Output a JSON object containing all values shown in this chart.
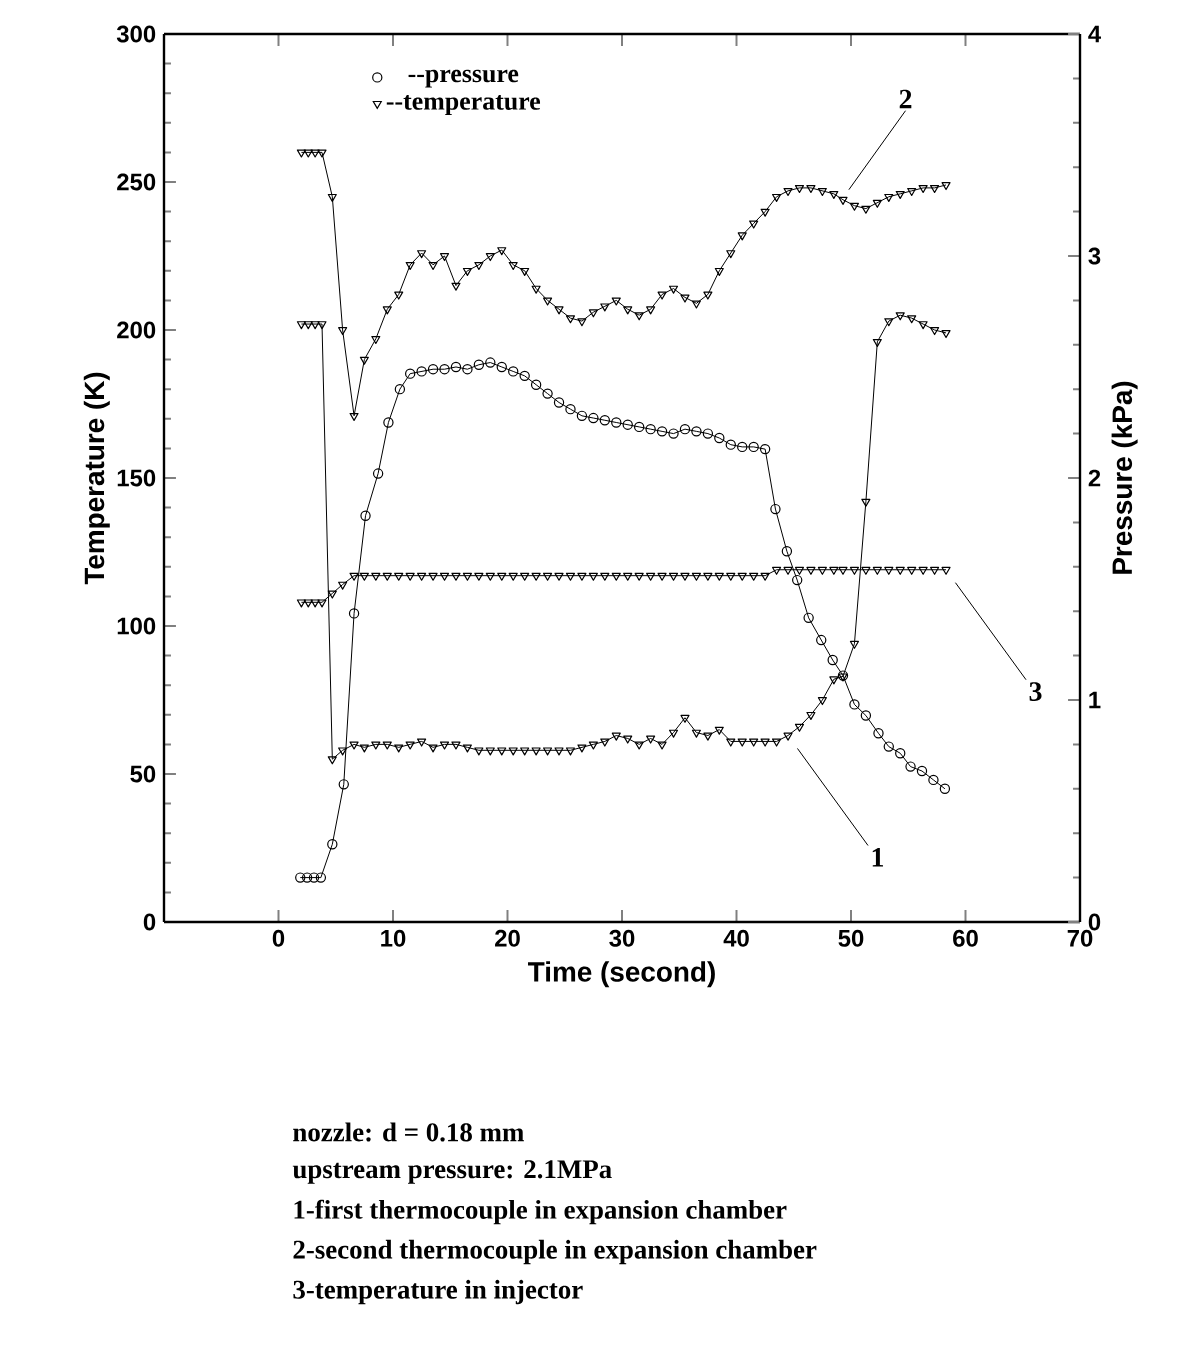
{
  "chart_data": {
    "type": "line",
    "xlabel": "Time (second)",
    "ylabel": "Temperature (K)",
    "y2label": "Pressure (kPa)",
    "xlim": [
      -10,
      70
    ],
    "xticks": [
      0,
      10,
      20,
      30,
      40,
      50,
      60,
      70
    ],
    "ylim": [
      0,
      300
    ],
    "yticks": [
      0,
      50,
      100,
      150,
      200,
      250,
      300
    ],
    "y2lim": [
      0,
      4
    ],
    "y2ticks": [
      0,
      1,
      2,
      3,
      4
    ],
    "legend": "top left",
    "line_style": "solid",
    "series": [
      {
        "name": "--pressure",
        "color": "#000000",
        "axis": "y2",
        "marker": "circle",
        "x": [
          1.9,
          2.5,
          3.1,
          3.7,
          4.7,
          5.7,
          6.6,
          7.6,
          8.7,
          9.6,
          10.6,
          11.5,
          12.5,
          13.5,
          14.5,
          15.5,
          16.5,
          17.5,
          18.5,
          19.5,
          20.5,
          21.5,
          22.5,
          23.5,
          24.5,
          25.5,
          26.5,
          27.5,
          28.5,
          29.5,
          30.5,
          31.5,
          32.5,
          33.5,
          34.5,
          35.5,
          36.5,
          37.5,
          38.5,
          39.5,
          40.5,
          41.5,
          42.5,
          43.4,
          44.4,
          45.3,
          46.3,
          47.4,
          48.4,
          49.3,
          50.3,
          51.3,
          52.4,
          53.3,
          54.3,
          55.2,
          56.2,
          57.2,
          58.2
        ],
        "values": [
          0.2,
          0.2,
          0.2,
          0.2,
          0.35,
          0.62,
          1.39,
          1.83,
          2.02,
          2.25,
          2.4,
          2.47,
          2.48,
          2.49,
          2.49,
          2.5,
          2.49,
          2.51,
          2.52,
          2.5,
          2.48,
          2.46,
          2.42,
          2.38,
          2.34,
          2.31,
          2.28,
          2.27,
          2.26,
          2.25,
          2.24,
          2.23,
          2.22,
          2.21,
          2.2,
          2.22,
          2.21,
          2.2,
          2.18,
          2.15,
          2.14,
          2.14,
          2.13,
          1.86,
          1.67,
          1.54,
          1.37,
          1.27,
          1.18,
          1.11,
          0.98,
          0.93,
          0.85,
          0.79,
          0.76,
          0.7,
          0.68,
          0.64,
          0.6
        ]
      },
      {
        "name": "--temperature",
        "color": "#000000",
        "marker": "triangle",
        "x": [
          2,
          2.6,
          3.2,
          3.8,
          4.7,
          5.6,
          6.6,
          7.5,
          8.5,
          9.5,
          10.5,
          11.5,
          12.5,
          13.5,
          14.5,
          15.5,
          16.5,
          17.5,
          18.5,
          19.5,
          20.5,
          21.5,
          22.5,
          23.5,
          24.5,
          25.5,
          26.5,
          27.5,
          28.5,
          29.5,
          30.5,
          31.5,
          32.5,
          33.5,
          34.5,
          35.5,
          36.5,
          37.5,
          38.5,
          39.5,
          40.5,
          41.5,
          42.5,
          43.5,
          44.5,
          45.5,
          46.5,
          47.5,
          48.5,
          49.3,
          50.3,
          51.3,
          52.3,
          53.3,
          54.3,
          55.3,
          56.3,
          57.3,
          58.3
        ],
        "values": [
          202,
          202,
          202,
          202,
          55,
          58,
          60,
          59,
          60,
          60,
          59,
          60,
          61,
          59,
          60,
          60,
          59,
          58,
          58,
          58,
          58,
          58,
          58,
          58,
          58,
          58,
          59,
          60,
          61,
          63,
          62,
          60,
          62,
          60,
          64,
          69,
          64,
          63,
          65,
          61,
          61,
          61,
          61,
          61,
          63,
          66,
          70,
          75,
          82,
          83,
          94,
          142,
          196,
          203,
          205,
          204,
          202,
          200,
          199
        ]
      },
      {
        "color": "#000000",
        "marker": "triangle",
        "x": [
          2,
          2.6,
          3.2,
          3.8,
          4.7,
          5.6,
          6.6,
          7.5,
          8.5,
          9.5,
          10.5,
          11.5,
          12.5,
          13.5,
          14.5,
          15.5,
          16.5,
          17.5,
          18.5,
          19.5,
          20.5,
          21.5,
          22.5,
          23.5,
          24.5,
          25.5,
          26.5,
          27.5,
          28.5,
          29.5,
          30.5,
          31.5,
          32.5,
          33.5,
          34.5,
          35.5,
          36.5,
          37.5,
          38.5,
          39.5,
          40.5,
          41.5,
          42.5,
          43.5,
          44.5,
          45.5,
          46.5,
          47.5,
          48.5,
          49.3,
          50.3,
          51.3,
          52.3,
          53.3,
          54.3,
          55.3,
          56.3,
          57.3,
          58.3
        ],
        "values": [
          260,
          260,
          260,
          260,
          245,
          200,
          171,
          190,
          197,
          207,
          212,
          222,
          226,
          222,
          225,
          215,
          220,
          222,
          225,
          227,
          222,
          220,
          214,
          210,
          207,
          204,
          203,
          206,
          208,
          210,
          207,
          205,
          207,
          212,
          214,
          211,
          209,
          212,
          220,
          226,
          232,
          236,
          240,
          245,
          247,
          248,
          248,
          247,
          246,
          244,
          242,
          241,
          243,
          245,
          246,
          247,
          248,
          248,
          249
        ]
      },
      {
        "color": "#000000",
        "marker": "triangle",
        "x": [
          2,
          2.6,
          3.2,
          3.8,
          4.7,
          5.6,
          6.6,
          7.5,
          8.5,
          9.5,
          10.5,
          11.5,
          12.5,
          13.5,
          14.5,
          15.5,
          16.5,
          17.5,
          18.5,
          19.5,
          20.5,
          21.5,
          22.5,
          23.5,
          24.5,
          25.5,
          26.5,
          27.5,
          28.5,
          29.5,
          30.5,
          31.5,
          32.5,
          33.5,
          34.5,
          35.5,
          36.5,
          37.5,
          38.5,
          39.5,
          40.5,
          41.5,
          42.5,
          43.5,
          44.5,
          45.5,
          46.5,
          47.5,
          48.5,
          49.3,
          50.3,
          51.3,
          52.3,
          53.3,
          54.3,
          55.3,
          56.3,
          57.3,
          58.3
        ],
        "values": [
          108,
          108,
          108,
          108,
          111,
          114,
          117,
          117,
          117,
          117,
          117,
          117,
          117,
          117,
          117,
          117,
          117,
          117,
          117,
          117,
          117,
          117,
          117,
          117,
          117,
          117,
          117,
          117,
          117,
          117,
          117,
          117,
          117,
          117,
          117,
          117,
          117,
          117,
          117,
          117,
          117,
          117,
          117,
          119,
          119,
          119,
          119,
          119,
          119,
          119,
          119,
          119,
          119,
          119,
          119,
          119,
          119,
          119,
          119
        ]
      }
    ],
    "annotations": [
      {
        "text": "2",
        "x": 49,
        "y": 243
      },
      {
        "text": "3",
        "x": 58.3,
        "y": 119
      },
      {
        "text": "1",
        "x": 44.5,
        "y": 63
      },
      "nozzle: d = 0.18 mm",
      "upstream pressure: 2.1MPa",
      "1-first thermocouple in expansion chamber",
      "2-second thermocouple in expansion chamber",
      "3-temperature in injector"
    ]
  }
}
